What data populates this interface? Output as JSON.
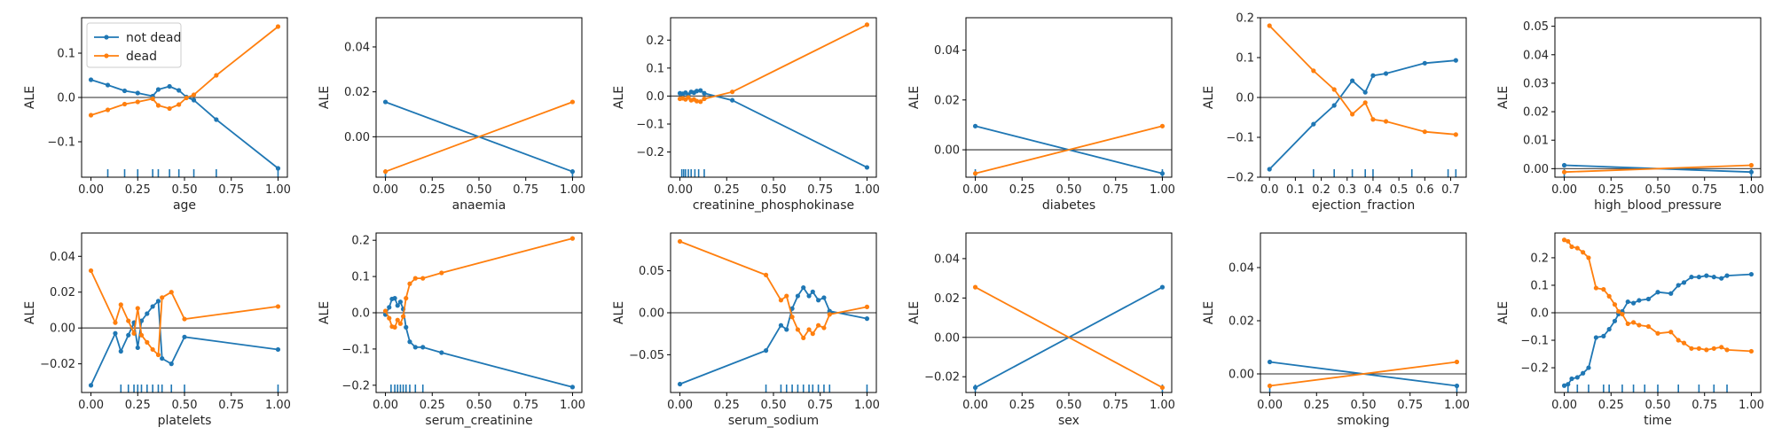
{
  "colors": {
    "not_dead": "#1f77b4",
    "dead": "#ff7f0e",
    "zero_line": "#555555",
    "rug": "#1f77b4"
  },
  "legend": {
    "placement": "upper-left",
    "items": [
      "not dead",
      "dead"
    ]
  },
  "chart_data": [
    {
      "type": "line",
      "xlabel": "age",
      "ylabel": "ALE",
      "xlim": [
        -0.05,
        1.05
      ],
      "ylim": [
        -0.18,
        0.18
      ],
      "xticks": [
        0,
        0.25,
        0.5,
        0.75,
        1
      ],
      "xtick_labels": [
        "0.00",
        "0.25",
        "0.50",
        "0.75",
        "1.00"
      ],
      "yticks": [
        -0.1,
        0,
        0.1
      ],
      "ytick_labels": [
        "−0.1",
        "0.0",
        "0.1"
      ],
      "x": [
        0,
        0.09,
        0.18,
        0.25,
        0.33,
        0.36,
        0.42,
        0.47,
        0.51,
        0.55,
        0.67,
        1.0
      ],
      "series": [
        {
          "name": "not dead",
          "values": [
            0.04,
            0.028,
            0.015,
            0.01,
            0.003,
            0.018,
            0.025,
            0.016,
            0.001,
            -0.006,
            -0.05,
            -0.16
          ]
        },
        {
          "name": "dead",
          "values": [
            -0.04,
            -0.028,
            -0.015,
            -0.01,
            -0.003,
            -0.018,
            -0.025,
            -0.016,
            -0.001,
            0.006,
            0.05,
            0.16
          ]
        }
      ],
      "rug": [
        0.09,
        0.18,
        0.25,
        0.33,
        0.36,
        0.42,
        0.47,
        0.55,
        0.67,
        1.0
      ],
      "legend": true
    },
    {
      "type": "line",
      "xlabel": "anaemia",
      "ylabel": "ALE",
      "xlim": [
        -0.05,
        1.05
      ],
      "ylim": [
        -0.018,
        0.053
      ],
      "xticks": [
        0,
        0.25,
        0.5,
        0.75,
        1
      ],
      "xtick_labels": [
        "0.00",
        "0.25",
        "0.50",
        "0.75",
        "1.00"
      ],
      "yticks": [
        0,
        0.02,
        0.04
      ],
      "ytick_labels": [
        "0.00",
        "0.02",
        "0.04"
      ],
      "x": [
        0,
        1
      ],
      "series": [
        {
          "name": "not dead",
          "values": [
            0.0155,
            -0.0155
          ]
        },
        {
          "name": "dead",
          "values": [
            -0.0155,
            0.0155
          ]
        }
      ],
      "rug": [
        0,
        1
      ]
    },
    {
      "type": "line",
      "xlabel": "creatinine_phosphokinase",
      "ylabel": "ALE",
      "xlim": [
        -0.05,
        1.05
      ],
      "ylim": [
        -0.29,
        0.28
      ],
      "xticks": [
        0,
        0.25,
        0.5,
        0.75,
        1
      ],
      "xtick_labels": [
        "0.00",
        "0.25",
        "0.50",
        "0.75",
        "1.00"
      ],
      "yticks": [
        -0.2,
        -0.1,
        0,
        0.1,
        0.2
      ],
      "ytick_labels": [
        "−0.2",
        "−0.1",
        "0.0",
        "0.1",
        "0.2"
      ],
      "x": [
        0,
        0.015,
        0.03,
        0.045,
        0.06,
        0.075,
        0.09,
        0.11,
        0.13,
        0.28,
        1.0
      ],
      "series": [
        {
          "name": "not dead",
          "values": [
            0.01,
            0.008,
            0.012,
            0.005,
            0.015,
            0.012,
            0.018,
            0.02,
            0.01,
            -0.015,
            -0.255
          ]
        },
        {
          "name": "dead",
          "values": [
            -0.01,
            -0.008,
            -0.012,
            -0.005,
            -0.015,
            -0.012,
            -0.018,
            -0.02,
            -0.01,
            0.015,
            0.255
          ]
        }
      ],
      "rug": [
        0.01,
        0.02,
        0.03,
        0.045,
        0.06,
        0.08,
        0.1,
        0.13
      ]
    },
    {
      "type": "line",
      "xlabel": "diabetes",
      "ylabel": "ALE",
      "xlim": [
        -0.05,
        1.05
      ],
      "ylim": [
        -0.011,
        0.053
      ],
      "xticks": [
        0,
        0.25,
        0.5,
        0.75,
        1
      ],
      "xtick_labels": [
        "0.00",
        "0.25",
        "0.50",
        "0.75",
        "1.00"
      ],
      "yticks": [
        0,
        0.02,
        0.04
      ],
      "ytick_labels": [
        "0.00",
        "0.02",
        "0.04"
      ],
      "x": [
        0,
        1
      ],
      "series": [
        {
          "name": "not dead",
          "values": [
            0.0095,
            -0.0095
          ]
        },
        {
          "name": "dead",
          "values": [
            -0.0095,
            0.0095
          ]
        }
      ],
      "rug": [
        0,
        1
      ]
    },
    {
      "type": "line",
      "xlabel": "ejection_fraction",
      "ylabel": "ALE",
      "xlim": [
        -0.035,
        0.76
      ],
      "ylim": [
        -0.2,
        0.2
      ],
      "xticks": [
        0,
        0.1,
        0.2,
        0.3,
        0.4,
        0.5,
        0.6,
        0.7
      ],
      "xtick_labels": [
        "0.0",
        "0.1",
        "0.2",
        "0.3",
        "0.4",
        "0.5",
        "0.6",
        "0.7"
      ],
      "yticks": [
        -0.2,
        -0.1,
        0,
        0.1,
        0.2
      ],
      "ytick_labels": [
        "−0.2",
        "−0.1",
        "0.0",
        "0.1",
        "0.2"
      ],
      "x": [
        0,
        0.17,
        0.25,
        0.32,
        0.37,
        0.4,
        0.45,
        0.6,
        0.72
      ],
      "series": [
        {
          "name": "not dead",
          "values": [
            -0.18,
            -0.067,
            -0.02,
            0.042,
            0.013,
            0.055,
            0.06,
            0.086,
            0.093
          ]
        },
        {
          "name": "dead",
          "values": [
            0.18,
            0.067,
            0.02,
            -0.042,
            -0.013,
            -0.055,
            -0.06,
            -0.086,
            -0.093
          ]
        }
      ],
      "rug": [
        0.17,
        0.25,
        0.32,
        0.37,
        0.4,
        0.55,
        0.69,
        0.72
      ]
    },
    {
      "type": "line",
      "xlabel": "high_blood_pressure",
      "ylabel": "ALE",
      "xlim": [
        -0.05,
        1.05
      ],
      "ylim": [
        -0.003,
        0.053
      ],
      "xticks": [
        0,
        0.25,
        0.5,
        0.75,
        1
      ],
      "xtick_labels": [
        "0.00",
        "0.25",
        "0.50",
        "0.75",
        "1.00"
      ],
      "yticks": [
        0,
        0.01,
        0.02,
        0.03,
        0.04,
        0.05
      ],
      "ytick_labels": [
        "0.00",
        "0.01",
        "0.02",
        "0.03",
        "0.04",
        "0.05"
      ],
      "x": [
        0,
        1
      ],
      "series": [
        {
          "name": "not dead",
          "values": [
            0.0012,
            -0.0012
          ]
        },
        {
          "name": "dead",
          "values": [
            -0.0012,
            0.0012
          ]
        }
      ],
      "rug": [
        0,
        1
      ]
    },
    {
      "type": "line",
      "xlabel": "platelets",
      "ylabel": "ALE",
      "xlim": [
        -0.05,
        1.05
      ],
      "ylim": [
        -0.036,
        0.053
      ],
      "xticks": [
        0,
        0.25,
        0.5,
        0.75,
        1
      ],
      "xtick_labels": [
        "0.00",
        "0.25",
        "0.50",
        "0.75",
        "1.00"
      ],
      "yticks": [
        -0.02,
        0,
        0.02,
        0.04
      ],
      "ytick_labels": [
        "−0.02",
        "0.00",
        "0.02",
        "0.04"
      ],
      "x": [
        0,
        0.13,
        0.16,
        0.2,
        0.23,
        0.25,
        0.27,
        0.3,
        0.33,
        0.36,
        0.38,
        0.43,
        0.5,
        1.0
      ],
      "series": [
        {
          "name": "not dead",
          "values": [
            -0.032,
            -0.003,
            -0.013,
            -0.004,
            0.003,
            -0.011,
            0.004,
            0.008,
            0.012,
            0.015,
            -0.017,
            -0.02,
            -0.005,
            -0.012
          ]
        },
        {
          "name": "dead",
          "values": [
            0.032,
            0.003,
            0.013,
            0.004,
            -0.003,
            0.011,
            -0.004,
            -0.008,
            -0.012,
            -0.015,
            0.017,
            0.02,
            0.005,
            0.012
          ]
        }
      ],
      "rug": [
        0.16,
        0.2,
        0.23,
        0.25,
        0.27,
        0.3,
        0.33,
        0.36,
        0.38,
        0.43,
        0.5,
        1.0
      ]
    },
    {
      "type": "line",
      "xlabel": "serum_creatinine",
      "ylabel": "ALE",
      "xlim": [
        -0.05,
        1.05
      ],
      "ylim": [
        -0.22,
        0.22
      ],
      "xticks": [
        0,
        0.25,
        0.5,
        0.75,
        1
      ],
      "xtick_labels": [
        "0.00",
        "0.25",
        "0.50",
        "0.75",
        "1.00"
      ],
      "yticks": [
        -0.2,
        -0.1,
        0,
        0.1,
        0.2
      ],
      "ytick_labels": [
        "−0.2",
        "−0.1",
        "0.0",
        "0.1",
        "0.2"
      ],
      "x": [
        0,
        0.02,
        0.035,
        0.05,
        0.065,
        0.08,
        0.095,
        0.11,
        0.13,
        0.16,
        0.2,
        0.3,
        1.0
      ],
      "series": [
        {
          "name": "not dead",
          "values": [
            -0.005,
            0.015,
            0.038,
            0.04,
            0.02,
            0.03,
            0.01,
            -0.04,
            -0.08,
            -0.095,
            -0.095,
            -0.11,
            -0.205
          ]
        },
        {
          "name": "dead",
          "values": [
            0.005,
            -0.015,
            -0.038,
            -0.04,
            -0.02,
            -0.03,
            -0.01,
            0.04,
            0.08,
            0.095,
            0.095,
            0.11,
            0.205
          ]
        }
      ],
      "rug": [
        0.03,
        0.05,
        0.065,
        0.08,
        0.095,
        0.11,
        0.13,
        0.16,
        0.2
      ]
    },
    {
      "type": "line",
      "xlabel": "serum_sodium",
      "ylabel": "ALE",
      "xlim": [
        -0.05,
        1.05
      ],
      "ylim": [
        -0.095,
        0.095
      ],
      "xticks": [
        0,
        0.25,
        0.5,
        0.75,
        1
      ],
      "xtick_labels": [
        "0.00",
        "0.25",
        "0.50",
        "0.75",
        "1.00"
      ],
      "yticks": [
        -0.05,
        0,
        0.05
      ],
      "ytick_labels": [
        "−0.05",
        "0.00",
        "0.05"
      ],
      "x": [
        0,
        0.46,
        0.54,
        0.57,
        0.6,
        0.63,
        0.66,
        0.69,
        0.71,
        0.74,
        0.77,
        0.8,
        1.0
      ],
      "series": [
        {
          "name": "not dead",
          "values": [
            -0.085,
            -0.045,
            -0.015,
            -0.02,
            0.005,
            0.02,
            0.03,
            0.02,
            0.025,
            0.015,
            0.018,
            0.002,
            -0.007
          ]
        },
        {
          "name": "dead",
          "values": [
            0.085,
            0.045,
            0.015,
            0.02,
            -0.005,
            -0.02,
            -0.03,
            -0.02,
            -0.025,
            -0.015,
            -0.018,
            -0.002,
            0.007
          ]
        }
      ],
      "rug": [
        0.46,
        0.54,
        0.57,
        0.6,
        0.63,
        0.66,
        0.69,
        0.71,
        0.74,
        0.77,
        0.8,
        1.0
      ]
    },
    {
      "type": "line",
      "xlabel": "sex",
      "ylabel": "ALE",
      "xlim": [
        -0.05,
        1.05
      ],
      "ylim": [
        -0.028,
        0.053
      ],
      "xticks": [
        0,
        0.25,
        0.5,
        0.75,
        1
      ],
      "xtick_labels": [
        "0.00",
        "0.25",
        "0.50",
        "0.75",
        "1.00"
      ],
      "yticks": [
        -0.02,
        0,
        0.02,
        0.04
      ],
      "ytick_labels": [
        "−0.02",
        "0.00",
        "0.02",
        "0.04"
      ],
      "x": [
        0,
        1
      ],
      "series": [
        {
          "name": "not dead",
          "values": [
            -0.0255,
            0.0255
          ]
        },
        {
          "name": "dead",
          "values": [
            0.0255,
            -0.0255
          ]
        }
      ],
      "rug": [
        0,
        1
      ]
    },
    {
      "type": "line",
      "xlabel": "smoking",
      "ylabel": "ALE",
      "xlim": [
        -0.05,
        1.05
      ],
      "ylim": [
        -0.007,
        0.053
      ],
      "xticks": [
        0,
        0.25,
        0.5,
        0.75,
        1
      ],
      "xtick_labels": [
        "0.00",
        "0.25",
        "0.50",
        "0.75",
        "1.00"
      ],
      "yticks": [
        0,
        0.02,
        0.04
      ],
      "ytick_labels": [
        "0.00",
        "0.02",
        "0.04"
      ],
      "x": [
        0,
        1
      ],
      "series": [
        {
          "name": "not dead",
          "values": [
            0.0045,
            -0.0045
          ]
        },
        {
          "name": "dead",
          "values": [
            -0.0045,
            0.0045
          ]
        }
      ],
      "rug": [
        0,
        1
      ]
    },
    {
      "type": "line",
      "xlabel": "time",
      "ylabel": "ALE",
      "xlim": [
        -0.05,
        1.05
      ],
      "ylim": [
        -0.29,
        0.29
      ],
      "xticks": [
        0,
        0.25,
        0.5,
        0.75,
        1
      ],
      "xtick_labels": [
        "0.00",
        "0.25",
        "0.50",
        "0.75",
        "1.00"
      ],
      "yticks": [
        -0.2,
        -0.1,
        0,
        0.1,
        0.2
      ],
      "ytick_labels": [
        "−0.2",
        "−0.1",
        "0.0",
        "0.1",
        "0.2"
      ],
      "x": [
        0,
        0.02,
        0.04,
        0.07,
        0.1,
        0.13,
        0.17,
        0.21,
        0.24,
        0.27,
        0.29,
        0.31,
        0.34,
        0.37,
        0.4,
        0.45,
        0.5,
        0.57,
        0.61,
        0.64,
        0.68,
        0.72,
        0.76,
        0.8,
        0.84,
        0.87,
        1.0
      ],
      "series": [
        {
          "name": "not dead",
          "values": [
            -0.265,
            -0.26,
            -0.24,
            -0.235,
            -0.22,
            -0.2,
            -0.09,
            -0.085,
            -0.06,
            -0.03,
            -0.005,
            0.005,
            0.04,
            0.035,
            0.045,
            0.05,
            0.075,
            0.07,
            0.1,
            0.11,
            0.13,
            0.13,
            0.135,
            0.13,
            0.125,
            0.135,
            0.14
          ]
        },
        {
          "name": "dead",
          "values": [
            0.265,
            0.26,
            0.24,
            0.235,
            0.22,
            0.2,
            0.09,
            0.085,
            0.06,
            0.03,
            0.005,
            -0.005,
            -0.04,
            -0.035,
            -0.045,
            -0.05,
            -0.075,
            -0.07,
            -0.1,
            -0.11,
            -0.13,
            -0.13,
            -0.135,
            -0.13,
            -0.125,
            -0.135,
            -0.14
          ]
        }
      ],
      "rug": [
        0.02,
        0.07,
        0.13,
        0.21,
        0.24,
        0.31,
        0.37,
        0.43,
        0.5,
        0.61,
        0.72,
        0.8,
        0.87
      ]
    }
  ]
}
